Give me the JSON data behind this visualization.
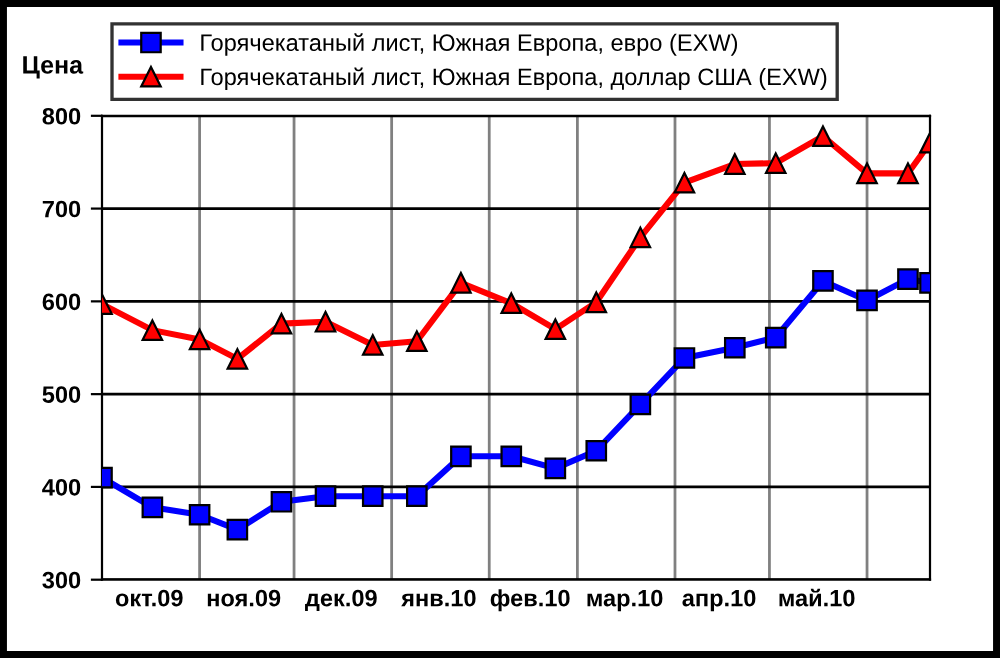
{
  "chart_data": {
    "type": "line",
    "ylabel": "Цена",
    "x": [
      "2009-10-01",
      "2009-10-17",
      "2009-11-01",
      "2009-11-13",
      "2009-11-27",
      "2009-12-11",
      "2009-12-26",
      "2010-01-09",
      "2010-01-23",
      "2010-02-08",
      "2010-02-22",
      "2010-03-07",
      "2010-03-21",
      "2010-04-04",
      "2010-04-20",
      "2010-05-03",
      "2010-05-18",
      "2010-06-01",
      "2010-06-14",
      "2010-06-21"
    ],
    "series": [
      {
        "name": "Горячекатаный лист, Южная Европа, евро (EXW)",
        "color": "#0000ff",
        "marker": "square",
        "values": [
          410,
          378,
          370,
          354,
          384,
          390,
          390,
          390,
          433,
          433,
          420,
          439,
          489,
          539,
          550,
          561,
          622,
          601,
          624,
          620
        ]
      },
      {
        "name": "Горячекатаный лист, Южная Европа, доллар США (EXW)",
        "color": "#ff0000",
        "marker": "triangle",
        "values": [
          597,
          569,
          559,
          538,
          576,
          578,
          553,
          557,
          620,
          598,
          570,
          599,
          669,
          728,
          748,
          749,
          778,
          738,
          738,
          771
        ]
      }
    ],
    "xlim": [
      "2009-10-01",
      "2010-06-21"
    ],
    "xticks": [
      {
        "value": "2009-11-01",
        "label": null
      },
      {
        "value": "2009-12-01",
        "label": null
      },
      {
        "value": "2010-01-01",
        "label": null
      },
      {
        "value": "2010-02-01",
        "label": null
      },
      {
        "value": "2010-03-01",
        "label": null
      },
      {
        "value": "2010-04-01",
        "label": null
      },
      {
        "value": "2010-05-01",
        "label": null
      },
      {
        "value": "2010-06-01",
        "label": null
      },
      {
        "value": "2009-10-16",
        "label": "окт.09"
      },
      {
        "value": "2009-11-15",
        "label": "ноя.09"
      },
      {
        "value": "2009-12-16",
        "label": "дек.09"
      },
      {
        "value": "2010-01-16",
        "label": "янв.10"
      },
      {
        "value": "2010-02-14",
        "label": "фев.10"
      },
      {
        "value": "2010-03-16",
        "label": "мар.10"
      },
      {
        "value": "2010-04-15",
        "label": "апр.10"
      },
      {
        "value": "2010-05-16",
        "label": "май.10"
      }
    ],
    "ylim": [
      300,
      800
    ],
    "yticks": [
      300,
      400,
      500,
      600,
      700,
      800
    ],
    "grid": true,
    "legend": "top",
    "line_style": "solid"
  }
}
